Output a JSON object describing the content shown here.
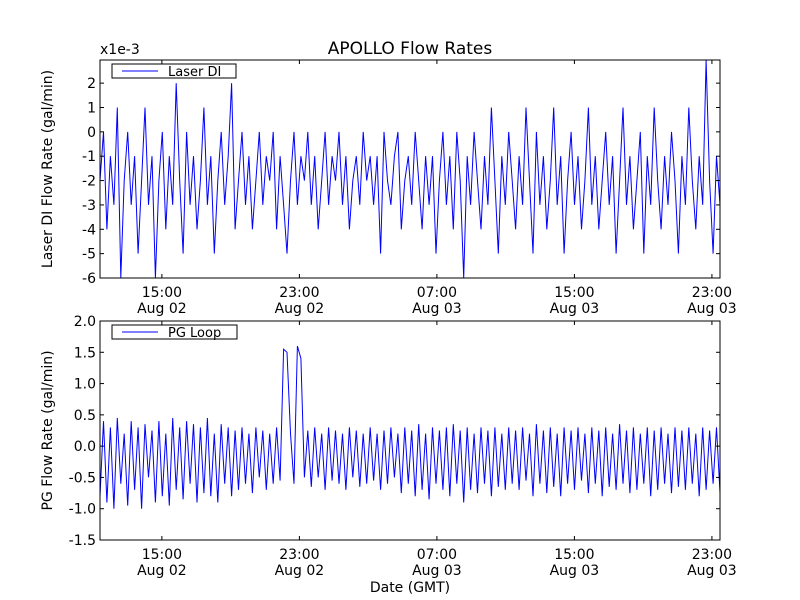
{
  "chart_data": [
    {
      "type": "line",
      "title": "APOLLO Flow Rates",
      "ylabel": "Laser DI Flow Rate (gal/min)",
      "xlabel": "",
      "y_scale_label": "x1e-3",
      "ylim": [
        -6,
        2.95
      ],
      "yticks": [
        "2",
        "1",
        "0",
        "-1",
        "-2",
        "-3",
        "-4",
        "-5",
        "-6"
      ],
      "ytick_values": [
        2,
        1,
        0,
        -1,
        -2,
        -3,
        -4,
        -5,
        -6
      ],
      "x_units": "hours since Aug 02 00:00 GMT",
      "xlim": [
        11.4,
        47.47
      ],
      "xtick_values": [
        15,
        23,
        31,
        39,
        47
      ],
      "xticks": [
        [
          "15:00",
          "Aug 02"
        ],
        [
          "23:00",
          "Aug 02"
        ],
        [
          "07:00",
          "Aug 03"
        ],
        [
          "15:00",
          "Aug 03"
        ],
        [
          "23:00",
          "Aug 03"
        ]
      ],
      "legend": {
        "label": "Laser DI",
        "placement": "top-left"
      },
      "color": "#0000ff",
      "series": [
        {
          "name": "Laser DI",
          "values": [
            -2,
            0,
            -4,
            -1,
            -3,
            1,
            -6,
            -2,
            0,
            -3,
            -1,
            -5,
            -2,
            1,
            -3,
            -1,
            -6,
            -2,
            0,
            -4,
            -1,
            -3,
            2,
            -2,
            -5,
            0,
            -3,
            -1,
            -4,
            -2,
            1,
            -3,
            -1,
            -5,
            -2,
            0,
            -3,
            -1,
            2,
            -4,
            -2,
            0,
            -3,
            -1,
            -4,
            -2,
            0,
            -3,
            -1,
            -2,
            0,
            -4,
            -1,
            -3,
            -5,
            -2,
            0,
            -3,
            -1,
            -2,
            0,
            -3,
            -1,
            -4,
            -2,
            0,
            -3,
            -1,
            -2,
            0,
            -3,
            -1,
            -4,
            -2,
            -1,
            -3,
            0,
            -2,
            -1,
            -3,
            -1,
            -5,
            0,
            -2,
            -3,
            -1,
            0,
            -4,
            -2,
            -1,
            -3,
            0,
            -2,
            -4,
            -1,
            -3,
            -1,
            -5,
            -2,
            0,
            -3,
            -1,
            -4,
            0,
            -2,
            -6,
            -1,
            -3,
            0,
            -2,
            -4,
            -1,
            -3,
            1,
            -2,
            -5,
            -1,
            -3,
            0,
            -2,
            -4,
            -1,
            -3,
            1,
            -2,
            -5,
            0,
            -3,
            -1,
            -4,
            -2,
            1,
            -3,
            -1,
            -5,
            -2,
            0,
            -3,
            -1,
            -4,
            -2,
            1,
            -3,
            -1,
            -4,
            -2,
            0,
            -3,
            -1,
            -5,
            -2,
            1,
            -3,
            -1,
            -4,
            -2,
            0,
            -5,
            -1,
            -3,
            1,
            -2,
            -4,
            -1,
            -3,
            0,
            -2,
            -5,
            -1,
            -3,
            1,
            -2,
            -4,
            -1,
            -3,
            3,
            -2,
            -5,
            -1,
            -3
          ]
        }
      ]
    },
    {
      "type": "line",
      "ylabel": "PG Flow Rate (gal/min)",
      "xlabel": "Date (GMT)",
      "ylim": [
        -1.5,
        2.0
      ],
      "yticks": [
        "2.0",
        "1.5",
        "1.0",
        "0.5",
        "0.0",
        "-0.5",
        "-1.0",
        "-1.5"
      ],
      "ytick_values": [
        2.0,
        1.5,
        1.0,
        0.5,
        0.0,
        -0.5,
        -1.0,
        -1.5
      ],
      "x_units": "hours since Aug 02 00:00 GMT",
      "xlim": [
        11.4,
        47.47
      ],
      "xtick_values": [
        15,
        23,
        31,
        39,
        47
      ],
      "xticks": [
        [
          "15:00",
          "Aug 02"
        ],
        [
          "23:00",
          "Aug 02"
        ],
        [
          "07:00",
          "Aug 03"
        ],
        [
          "15:00",
          "Aug 03"
        ],
        [
          "23:00",
          "Aug 03"
        ]
      ],
      "legend": {
        "label": "PG Loop",
        "placement": "top-left"
      },
      "color": "#0000ff",
      "series": [
        {
          "name": "PG Loop",
          "values": [
            -0.8,
            0.4,
            -0.9,
            0.3,
            -1.0,
            0.45,
            -0.6,
            0.2,
            -0.95,
            0.4,
            -0.7,
            0.3,
            -1.0,
            0.35,
            -0.5,
            0.25,
            -0.9,
            0.4,
            -0.8,
            0.2,
            -0.95,
            0.45,
            -0.7,
            0.3,
            -0.85,
            0.4,
            -0.6,
            0.35,
            -0.9,
            0.3,
            -0.75,
            0.45,
            -0.8,
            0.2,
            -0.9,
            0.35,
            -0.6,
            0.3,
            -0.8,
            0.25,
            -0.7,
            0.3,
            -0.6,
            0.2,
            -0.75,
            0.3,
            -0.5,
            0.25,
            -0.7,
            0.2,
            -0.6,
            0.3,
            -0.55,
            1.55,
            1.5,
            0.2,
            -0.6,
            1.6,
            1.4,
            -0.5,
            0.25,
            -0.65,
            0.3,
            -0.5,
            0.2,
            -0.7,
            0.3,
            -0.55,
            0.25,
            -0.6,
            0.2,
            -0.7,
            0.3,
            -0.5,
            0.25,
            -0.65,
            0.2,
            -0.6,
            0.3,
            -0.55,
            0.2,
            -0.7,
            0.25,
            -0.6,
            0.3,
            -0.5,
            0.2,
            -0.75,
            0.3,
            -0.6,
            0.25,
            -0.8,
            0.35,
            -0.7,
            0.2,
            -0.85,
            0.3,
            -0.6,
            0.25,
            -0.7,
            0.3,
            -0.8,
            0.35,
            -0.6,
            0.25,
            -0.9,
            0.3,
            -0.7,
            0.2,
            -0.75,
            0.3,
            -0.6,
            0.25,
            -0.8,
            0.3,
            -0.65,
            0.2,
            -0.7,
            0.3,
            -0.6,
            0.25,
            -0.7,
            0.3,
            -0.55,
            0.2,
            -0.8,
            0.35,
            -0.6,
            0.25,
            -0.75,
            0.3,
            -0.65,
            0.2,
            -0.8,
            0.3,
            -0.6,
            0.25,
            -0.7,
            0.3,
            -0.55,
            0.2,
            -0.75,
            0.3,
            -0.6,
            0.25,
            -0.8,
            0.3,
            -0.65,
            0.2,
            -0.7,
            0.35,
            -0.6,
            0.25,
            -0.75,
            0.3,
            -0.7,
            0.2,
            -0.6,
            0.3,
            -0.8,
            0.25,
            -0.7,
            0.3,
            -0.6,
            0.2,
            -0.75,
            0.3,
            -0.65,
            0.25,
            -0.7,
            0.3,
            -0.6,
            0.2,
            -0.8,
            0.3,
            -0.7,
            0.25,
            -0.6,
            0.3,
            -0.75
          ]
        }
      ]
    }
  ]
}
